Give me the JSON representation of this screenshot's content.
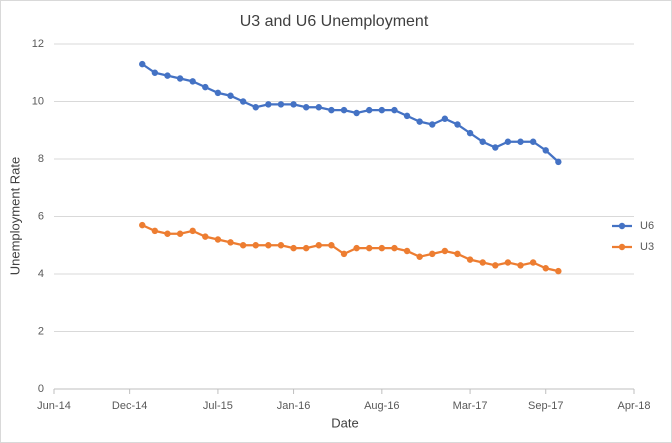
{
  "chart_data": {
    "type": "line",
    "title": "U3 and U6 Unemployment",
    "x_label": "Date",
    "y_label": "Unemployment Rate",
    "x": [
      "2015-01",
      "2015-02",
      "2015-03",
      "2015-04",
      "2015-05",
      "2015-06",
      "2015-07",
      "2015-08",
      "2015-09",
      "2015-10",
      "2015-11",
      "2015-12",
      "2016-01",
      "2016-02",
      "2016-03",
      "2016-04",
      "2016-05",
      "2016-06",
      "2016-07",
      "2016-08",
      "2016-09",
      "2016-10",
      "2016-11",
      "2016-12",
      "2017-01",
      "2017-02",
      "2017-03",
      "2017-04",
      "2017-05",
      "2017-06",
      "2017-07",
      "2017-08",
      "2017-09",
      "2017-10"
    ],
    "series": [
      {
        "name": "U6",
        "color": "#4472c4",
        "values": [
          11.3,
          11.0,
          10.9,
          10.8,
          10.7,
          10.5,
          10.3,
          10.2,
          10.0,
          9.8,
          9.9,
          9.9,
          9.9,
          9.8,
          9.8,
          9.7,
          9.7,
          9.6,
          9.7,
          9.7,
          9.7,
          9.5,
          9.3,
          9.2,
          9.4,
          9.2,
          8.9,
          8.6,
          8.4,
          8.6,
          8.6,
          8.6,
          8.3,
          7.9
        ]
      },
      {
        "name": "U3",
        "color": "#ed7d31",
        "values": [
          5.7,
          5.5,
          5.4,
          5.4,
          5.5,
          5.3,
          5.2,
          5.1,
          5.0,
          5.0,
          5.0,
          5.0,
          4.9,
          4.9,
          5.0,
          5.0,
          4.7,
          4.9,
          4.9,
          4.9,
          4.9,
          4.8,
          4.6,
          4.7,
          4.8,
          4.7,
          4.5,
          4.4,
          4.3,
          4.4,
          4.3,
          4.4,
          4.2,
          4.1
        ]
      }
    ],
    "xlim": [
      "2014-06",
      "2018-04"
    ],
    "xticks": [
      {
        "value": "2014-06",
        "label": "Jun-14"
      },
      {
        "value": "2014-12",
        "label": "Dec-14"
      },
      {
        "value": "2015-07",
        "label": "Jul-15"
      },
      {
        "value": "2016-01",
        "label": "Jan-16"
      },
      {
        "value": "2016-08",
        "label": "Aug-16"
      },
      {
        "value": "2017-03",
        "label": "Mar-17"
      },
      {
        "value": "2017-09",
        "label": "Sep-17"
      },
      {
        "value": "2018-04",
        "label": "Apr-18"
      }
    ],
    "ylim": [
      0,
      12
    ],
    "yticks": [
      0,
      2,
      4,
      6,
      8,
      10,
      12
    ],
    "grid": true,
    "legend": "right"
  }
}
